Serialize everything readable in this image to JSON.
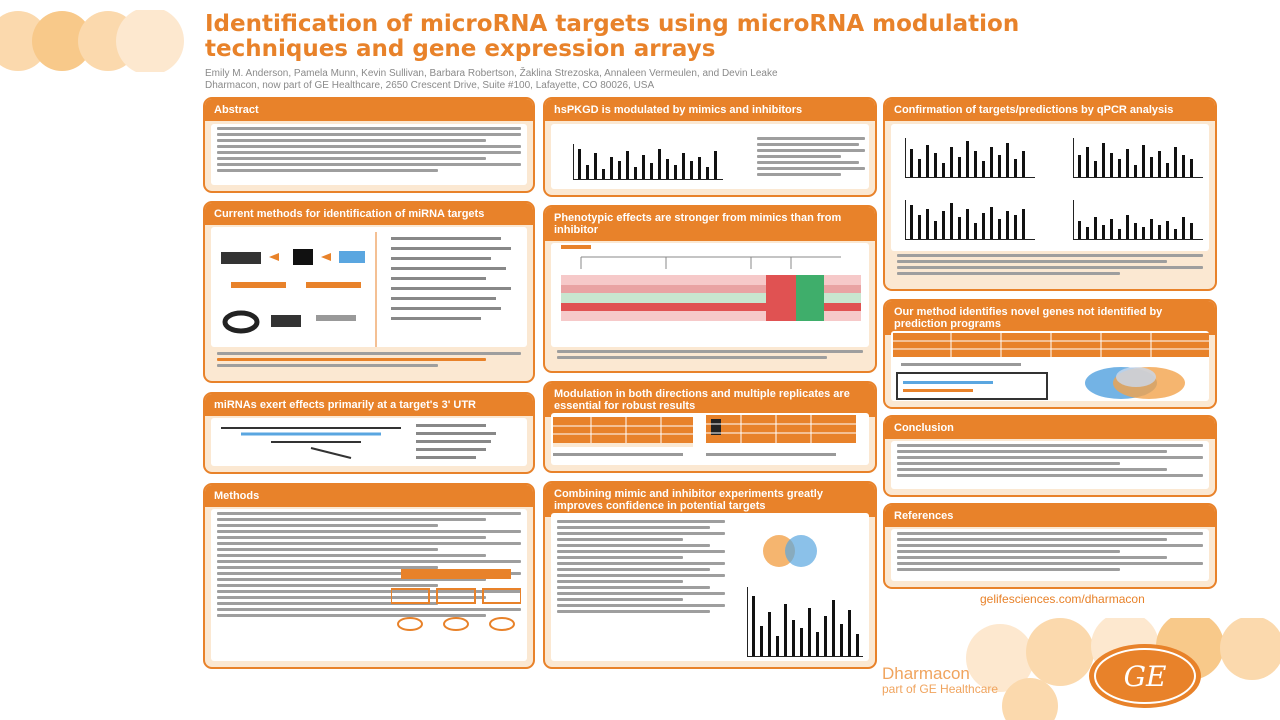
{
  "poster": {
    "title_line1": "Identification of microRNA targets using microRNA modulation",
    "title_line2": "techniques and gene expression arrays",
    "authors": "Emily M. Anderson, Pamela Munn, Kevin Sullivan, Barbara Robertson, Žaklina Strezoska, Annaleen Vermeulen, and Devin Leake",
    "affiliation": "Dharmacon, now part of GE Healthcare, 2650 Crescent Drive, Suite #100, Lafayette, CO 80026, USA",
    "website": "gelifesciences.com/dharmacon",
    "brand_name": "Dharmacon",
    "brand_sub": "part of GE Healthcare",
    "logo_text": "GE"
  },
  "sections": {
    "abstract": "Abstract",
    "current_methods": "Current methods for identification of miRNA targets",
    "utr": "miRNAs exert effects primarily at a target's 3' UTR",
    "methods": "Methods",
    "modulated": "hsPKGD is modulated by mimics and inhibitors",
    "phenotypic": "Phenotypic effects are stronger from mimics than from inhibitor",
    "modulation": "Modulation in both directions and multiple replicates are essential for robust results",
    "combining": "Combining mimic and inhibitor experiments greatly improves confidence in potential targets",
    "confirmation": "Confirmation of targets/predictions by qPCR analysis",
    "our_method": "Our method identifies novel genes not identified by prediction programs",
    "conclusion": "Conclusion",
    "references": "References"
  },
  "colors": {
    "accent": "#e8822a",
    "panel_fill": "#fbe8d2",
    "heat_red": "#e05252",
    "heat_green": "#3fae6b",
    "venn_orange": "#f3a24b",
    "venn_blue": "#5aa6e0"
  },
  "icons": {
    "logo": "ge-monogram-icon",
    "decor": "circle-dots-icon"
  }
}
